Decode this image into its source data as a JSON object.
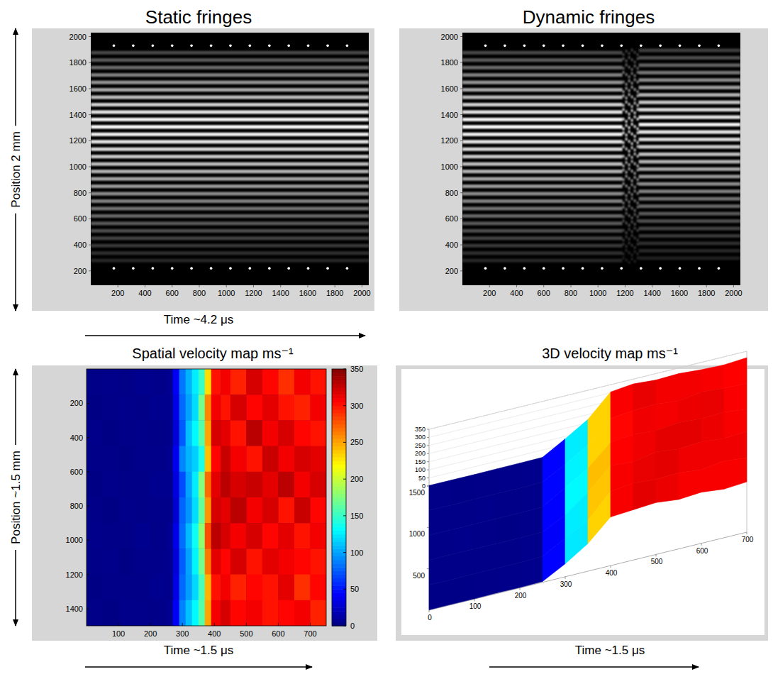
{
  "chart_data": [
    {
      "type": "fringes",
      "title": "Static fringes",
      "x_label": "Time ~4.2 μs",
      "y_label": "Position 2 mm",
      "xlim": [
        0,
        2050
      ],
      "ylim": [
        90,
        2030
      ],
      "xticks": [
        200,
        400,
        600,
        800,
        1000,
        1200,
        1400,
        1600,
        1800,
        2000
      ],
      "yticks": [
        200,
        400,
        600,
        800,
        1000,
        1200,
        1400,
        1600,
        1800,
        2000
      ],
      "fringes": [
        280,
        337,
        394,
        451,
        508,
        565,
        622,
        679,
        736,
        793,
        850,
        907,
        964,
        1021,
        1078,
        1135,
        1192,
        1249,
        1306,
        1363,
        1420,
        1477,
        1534,
        1591,
        1648,
        1705,
        1762,
        1819,
        1876
      ],
      "brightness": [
        0.15,
        0.18,
        0.22,
        0.26,
        0.3,
        0.35,
        0.4,
        0.45,
        0.5,
        0.55,
        0.6,
        0.65,
        0.7,
        0.75,
        0.8,
        0.85,
        0.9,
        0.95,
        1.0,
        0.95,
        0.9,
        0.82,
        0.74,
        0.66,
        0.58,
        0.5,
        0.42,
        0.35,
        0.28
      ],
      "markers_x": [
        170,
        313,
        457,
        600,
        743,
        887,
        1030,
        1173,
        1317,
        1460,
        1603,
        1747,
        1890
      ],
      "markers_y": [
        1930,
        220
      ]
    },
    {
      "type": "fringes",
      "title": "Dynamic fringes",
      "xlim": [
        0,
        2050
      ],
      "ylim": [
        90,
        2030
      ],
      "xticks": [
        200,
        400,
        600,
        800,
        1000,
        1200,
        1400,
        1600,
        1800,
        2000
      ],
      "yticks": [
        200,
        400,
        600,
        800,
        1000,
        1200,
        1400,
        1600,
        1800,
        2000
      ],
      "fringes": [
        280,
        337,
        394,
        451,
        508,
        565,
        622,
        679,
        736,
        793,
        850,
        907,
        964,
        1021,
        1078,
        1135,
        1192,
        1249,
        1306,
        1363,
        1420,
        1477,
        1534,
        1591,
        1648,
        1705,
        1762,
        1819,
        1876
      ],
      "brightness": [
        0.15,
        0.18,
        0.22,
        0.26,
        0.3,
        0.35,
        0.4,
        0.45,
        0.5,
        0.55,
        0.6,
        0.65,
        0.7,
        0.75,
        0.8,
        0.85,
        0.9,
        0.95,
        1.0,
        0.95,
        0.9,
        0.82,
        0.74,
        0.66,
        0.58,
        0.5,
        0.42,
        0.35,
        0.28
      ],
      "event_range": [
        1180,
        1300
      ],
      "fringes_after": [
        298,
        355,
        412,
        469,
        526,
        583,
        640,
        697,
        754,
        811,
        868,
        925,
        982,
        1039,
        1096,
        1153,
        1210,
        1267,
        1324,
        1381,
        1438,
        1495,
        1552,
        1609,
        1666,
        1723,
        1780,
        1837,
        1894
      ],
      "brightness_after": [
        0.12,
        0.15,
        0.18,
        0.22,
        0.26,
        0.3,
        0.35,
        0.4,
        0.45,
        0.5,
        0.55,
        0.6,
        0.65,
        0.7,
        0.75,
        0.8,
        0.85,
        0.9,
        0.95,
        0.9,
        0.85,
        0.78,
        0.7,
        0.62,
        0.54,
        0.46,
        0.38,
        0.3,
        0.24
      ],
      "markers_x": [
        170,
        313,
        457,
        600,
        743,
        887,
        1030,
        1173,
        1317,
        1460,
        1603,
        1747,
        1890
      ],
      "markers_y": [
        1930,
        220
      ]
    },
    {
      "type": "heatmap",
      "title": "Spatial velocity map ms⁻¹",
      "x_label": "Time ~1.5 μs",
      "y_label": "Position ~1.5 mm",
      "xlim": [
        0,
        750
      ],
      "ylim": [
        0,
        1500
      ],
      "xticks": [
        100,
        200,
        300,
        400,
        500,
        600,
        700
      ],
      "yticks": [
        200,
        400,
        600,
        800,
        1000,
        1200,
        1400
      ],
      "x_edges": [
        0,
        50,
        100,
        150,
        200,
        250,
        270,
        290,
        310,
        330,
        350,
        370,
        390,
        420,
        450,
        500,
        550,
        600,
        650,
        700,
        750
      ],
      "y_edges": [
        0,
        150,
        300,
        450,
        600,
        750,
        900,
        1050,
        1200,
        1350,
        1500
      ],
      "cells": [
        [
          3,
          4,
          3,
          5,
          4,
          6,
          40,
          85,
          105,
          125,
          150,
          230,
          300,
          310,
          295,
          320,
          305,
          290,
          310,
          300
        ],
        [
          2,
          3,
          4,
          3,
          5,
          5,
          35,
          80,
          100,
          120,
          170,
          260,
          310,
          300,
          320,
          305,
          315,
          300,
          295,
          310
        ],
        [
          4,
          2,
          3,
          4,
          3,
          4,
          30,
          75,
          110,
          130,
          160,
          250,
          320,
          315,
          300,
          330,
          310,
          320,
          305,
          300
        ],
        [
          3,
          3,
          2,
          4,
          4,
          6,
          38,
          90,
          105,
          115,
          140,
          240,
          305,
          325,
          310,
          300,
          325,
          310,
          320,
          315
        ],
        [
          2,
          4,
          3,
          3,
          5,
          5,
          32,
          70,
          100,
          125,
          175,
          270,
          315,
          330,
          320,
          325,
          315,
          330,
          310,
          320
        ],
        [
          3,
          2,
          4,
          3,
          4,
          4,
          28,
          78,
          95,
          120,
          165,
          255,
          320,
          315,
          330,
          310,
          320,
          300,
          325,
          305
        ],
        [
          4,
          3,
          3,
          5,
          3,
          6,
          36,
          82,
          108,
          135,
          180,
          280,
          330,
          320,
          310,
          320,
          305,
          315,
          300,
          310
        ],
        [
          3,
          4,
          2,
          4,
          4,
          5,
          30,
          76,
          100,
          128,
          170,
          265,
          315,
          305,
          320,
          300,
          315,
          310,
          305,
          300
        ],
        [
          2,
          3,
          3,
          3,
          5,
          4,
          34,
          80,
          98,
          118,
          155,
          245,
          300,
          310,
          295,
          305,
          300,
          315,
          290,
          305
        ],
        [
          3,
          2,
          4,
          4,
          3,
          6,
          40,
          88,
          110,
          130,
          160,
          250,
          310,
          320,
          305,
          310,
          300,
          305,
          310,
          295
        ]
      ],
      "clim": [
        0,
        350
      ],
      "cticks": [
        0,
        50,
        100,
        150,
        200,
        250,
        300,
        350
      ]
    },
    {
      "type": "surface3d",
      "title": "3D velocity map ms⁻¹",
      "x_label": "Time ~1.5 μs",
      "xlim": [
        0,
        700
      ],
      "ylim": [
        0,
        1500
      ],
      "zlim": [
        0,
        350
      ],
      "xticks": [
        0,
        100,
        200,
        300,
        400,
        500,
        600,
        700
      ],
      "yticks": [
        500,
        1000,
        1500
      ],
      "zticks": [
        0,
        50,
        100,
        150,
        200,
        250,
        300,
        350
      ],
      "x": [
        0,
        50,
        100,
        150,
        200,
        250,
        300,
        350,
        400,
        450,
        500,
        550,
        600,
        650,
        700
      ],
      "y": [
        0,
        300,
        600,
        900,
        1200,
        1500
      ],
      "z": [
        [
          2,
          3,
          2,
          4,
          3,
          5,
          80,
          170,
          300,
          310,
          320,
          305,
          315,
          300,
          310
        ],
        [
          3,
          2,
          3,
          3,
          4,
          6,
          85,
          160,
          305,
          320,
          310,
          315,
          300,
          320,
          305
        ],
        [
          2,
          4,
          3,
          2,
          3,
          4,
          75,
          180,
          310,
          300,
          325,
          310,
          320,
          305,
          315
        ],
        [
          3,
          3,
          4,
          3,
          2,
          5,
          90,
          175,
          300,
          315,
          305,
          320,
          310,
          315,
          300
        ],
        [
          4,
          2,
          3,
          4,
          3,
          6,
          80,
          165,
          295,
          310,
          315,
          300,
          320,
          310,
          305
        ],
        [
          3,
          3,
          2,
          3,
          4,
          5,
          85,
          170,
          305,
          320,
          310,
          315,
          305,
          300,
          310
        ]
      ],
      "clim": [
        0,
        350
      ]
    }
  ]
}
